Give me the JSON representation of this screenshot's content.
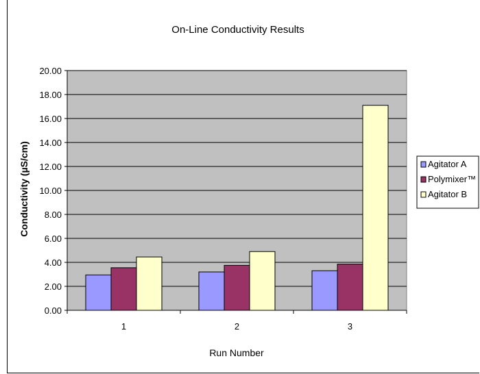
{
  "chart_data": {
    "type": "bar",
    "title": "On-Line Conductivity Results",
    "xlabel": "Run Number",
    "ylabel": "Conductivity (µS/cm)",
    "categories": [
      "1",
      "2",
      "3"
    ],
    "series": [
      {
        "name": "Agitator A",
        "values": [
          2.95,
          3.2,
          3.3
        ],
        "color": "#9999ff"
      },
      {
        "name": "Polymixer™",
        "values": [
          3.55,
          3.75,
          3.85
        ],
        "color": "#993366"
      },
      {
        "name": "Agitator B",
        "values": [
          4.45,
          4.9,
          17.1
        ],
        "color": "#ffffcc"
      }
    ],
    "ylim": [
      0,
      20
    ],
    "yticks": [
      "0.00",
      "2.00",
      "4.00",
      "6.00",
      "8.00",
      "10.00",
      "12.00",
      "14.00",
      "16.00",
      "18.00",
      "20.00"
    ],
    "plot_background": "#c0c0c0",
    "grid": true,
    "legend_position": "right"
  }
}
